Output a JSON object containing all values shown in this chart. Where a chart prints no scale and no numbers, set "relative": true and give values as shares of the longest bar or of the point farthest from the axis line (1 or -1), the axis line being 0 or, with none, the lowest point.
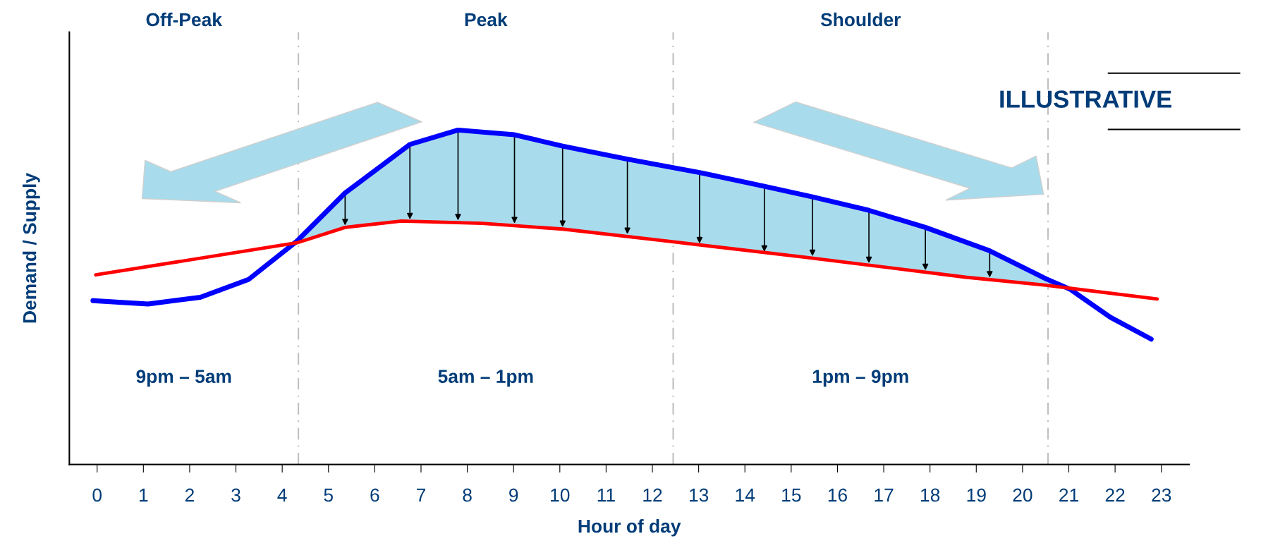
{
  "chart_data": {
    "type": "line",
    "relative": true,
    "xlabel": "Hour of day",
    "ylabel": "Demand / Supply",
    "xlim": [
      -0.6,
      23.6
    ],
    "xticks": [
      0,
      1,
      2,
      3,
      4,
      5,
      6,
      7,
      8,
      9,
      10,
      11,
      12,
      13,
      14,
      15,
      16,
      17,
      18,
      19,
      20,
      21,
      22,
      23
    ],
    "series": [
      {
        "color": "#0000ff",
        "x": [
          -0.09,
          1.1,
          2.23,
          3.27,
          4.32,
          5.36,
          6.76,
          7.8,
          9.02,
          10.06,
          11.46,
          13.02,
          14.42,
          15.46,
          16.68,
          17.9,
          19.29,
          20.51,
          21.03,
          21.9,
          22.78
        ],
        "values": [
          0.49,
          0.48,
          0.5,
          0.553,
          0.668,
          0.812,
          0.957,
          1.0,
          0.986,
          0.952,
          0.913,
          0.873,
          0.832,
          0.8,
          0.76,
          0.709,
          0.639,
          0.555,
          0.524,
          0.44,
          0.375
        ],
        "lower": [
          null,
          null,
          null,
          null,
          0.663,
          0.709,
          0.727,
          0.724,
          0.715,
          0.704,
          0.683,
          0.655,
          0.63,
          0.617,
          0.596,
          0.575,
          0.553,
          0.536,
          0.524,
          null,
          null
        ],
        "upper": [
          null,
          null,
          null,
          null,
          0.668,
          0.812,
          0.957,
          1.0,
          0.986,
          0.952,
          0.913,
          0.873,
          0.832,
          0.8,
          0.76,
          0.709,
          0.639,
          0.555,
          0.524,
          null,
          null
        ]
      },
      {
        "color": "#ff0000",
        "x": [
          -0.03,
          4.32,
          5.36,
          6.58,
          8.32,
          10.06,
          12.33,
          15.29,
          18.77,
          20.51,
          22.91
        ],
        "values": [
          0.567,
          0.663,
          0.709,
          0.728,
          0.721,
          0.704,
          0.668,
          0.62,
          0.56,
          0.536,
          0.495
        ]
      }
    ],
    "ref_lines": [
      {
        "axis": "x",
        "value": 4.35,
        "color": "#bfbfbf",
        "line_style": "dashed"
      },
      {
        "axis": "x",
        "value": 12.45,
        "color": "#bfbfbf",
        "line_style": "dashed"
      },
      {
        "axis": "x",
        "value": 20.55,
        "color": "#bfbfbf",
        "line_style": "dashed"
      }
    ],
    "annotations": [
      "Off-Peak",
      "Peak",
      "Shoulder",
      "9pm – 5am",
      "5am – 1pm",
      "1pm – 9pm",
      "ILLUSTRATIVE"
    ],
    "grid": false,
    "legend": false,
    "line_style": "solid",
    "marker": "none"
  }
}
